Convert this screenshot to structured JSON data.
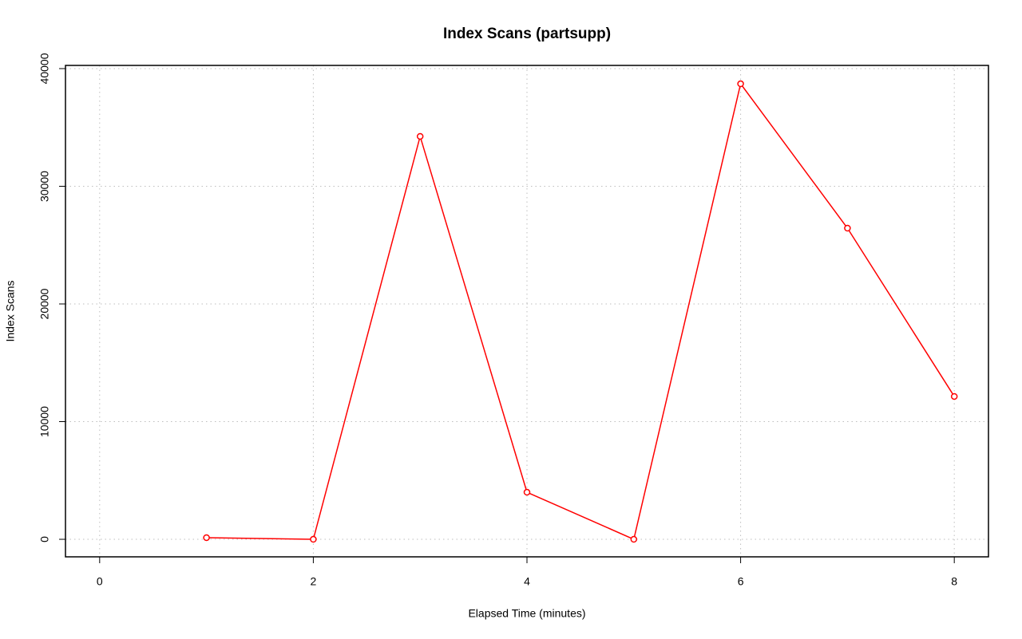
{
  "chart_data": {
    "type": "line",
    "title": "Index Scans (partsupp)",
    "x_label": "Elapsed Time (minutes)",
    "y_label": "Index Scans",
    "x": [
      1,
      2,
      3,
      4,
      5,
      6,
      7,
      8
    ],
    "series": [
      {
        "name": "Index Scans",
        "color": "#ff0000",
        "values": [
          140,
          0,
          34240,
          4000,
          0,
          38710,
          26440,
          12140
        ]
      }
    ],
    "xlim": [
      -0.32,
      8.32
    ],
    "xticks": [
      0,
      2,
      4,
      6,
      8
    ],
    "ylim": [
      -1490,
      40270
    ],
    "yticks": [
      0,
      10000,
      20000,
      30000,
      40000
    ],
    "grid": true,
    "grid_color": "#bebebe"
  }
}
